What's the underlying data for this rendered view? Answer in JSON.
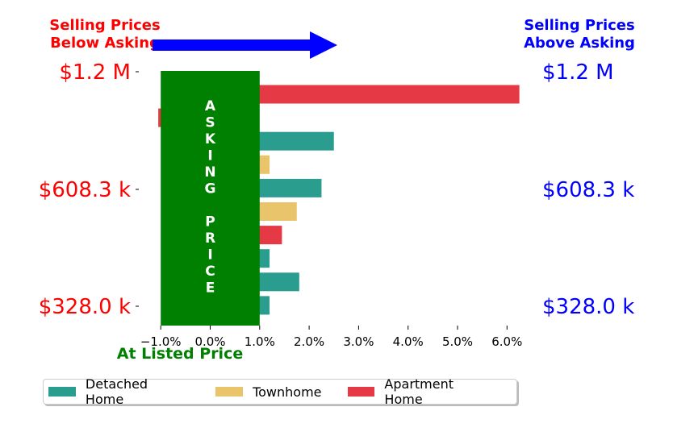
{
  "chart_data": {
    "type": "bar",
    "orientation": "horizontal",
    "header_left": [
      "Selling Prices",
      "Below Asking"
    ],
    "header_right": [
      "Selling Prices",
      "Above Asking"
    ],
    "y_tick_labels_left": [
      "$1.2 M",
      "$608.3 k",
      "$328.0 k"
    ],
    "y_tick_labels_right": [
      "$1.2 M",
      "$608.3 k",
      "$328.0 k"
    ],
    "x_ticks": [
      "−1.0%",
      "0.0%",
      "1.0%",
      "2.0%",
      "3.0%",
      "4.0%",
      "5.0%",
      "6.0%"
    ],
    "x_tick_values": [
      -1,
      0,
      1,
      2,
      3,
      4,
      5,
      6
    ],
    "xlim": [
      -1.05,
      6.35
    ],
    "asking_band_label": "ASKING PRICE",
    "asking_band_caption": "At Listed Price",
    "bars": [
      {
        "series": "Apartment Home",
        "value": 6.25
      },
      {
        "series": "Apartment Home",
        "value": -1.05
      },
      {
        "series": "Detached Home",
        "value": 2.5
      },
      {
        "series": "Townhome",
        "value": 1.2
      },
      {
        "series": "Detached Home",
        "value": 2.25
      },
      {
        "series": "Townhome",
        "value": 1.75
      },
      {
        "series": "Apartment Home",
        "value": 1.45
      },
      {
        "series": "Detached Home",
        "value": 1.2
      },
      {
        "series": "Detached Home",
        "value": 1.8
      },
      {
        "series": "Detached Home",
        "value": 1.2
      }
    ],
    "series": [
      {
        "name": "Detached Home",
        "color": "#2a9d8f"
      },
      {
        "name": "Townhome",
        "color": "#e9c46a"
      },
      {
        "name": "Apartment Home",
        "color": "#e63946"
      }
    ],
    "legend_position": "bottom",
    "colors": {
      "left_labels": "#ff0000",
      "right_labels": "#0000ff",
      "asking_band": "#008000",
      "arrow": "#0000ff"
    }
  }
}
